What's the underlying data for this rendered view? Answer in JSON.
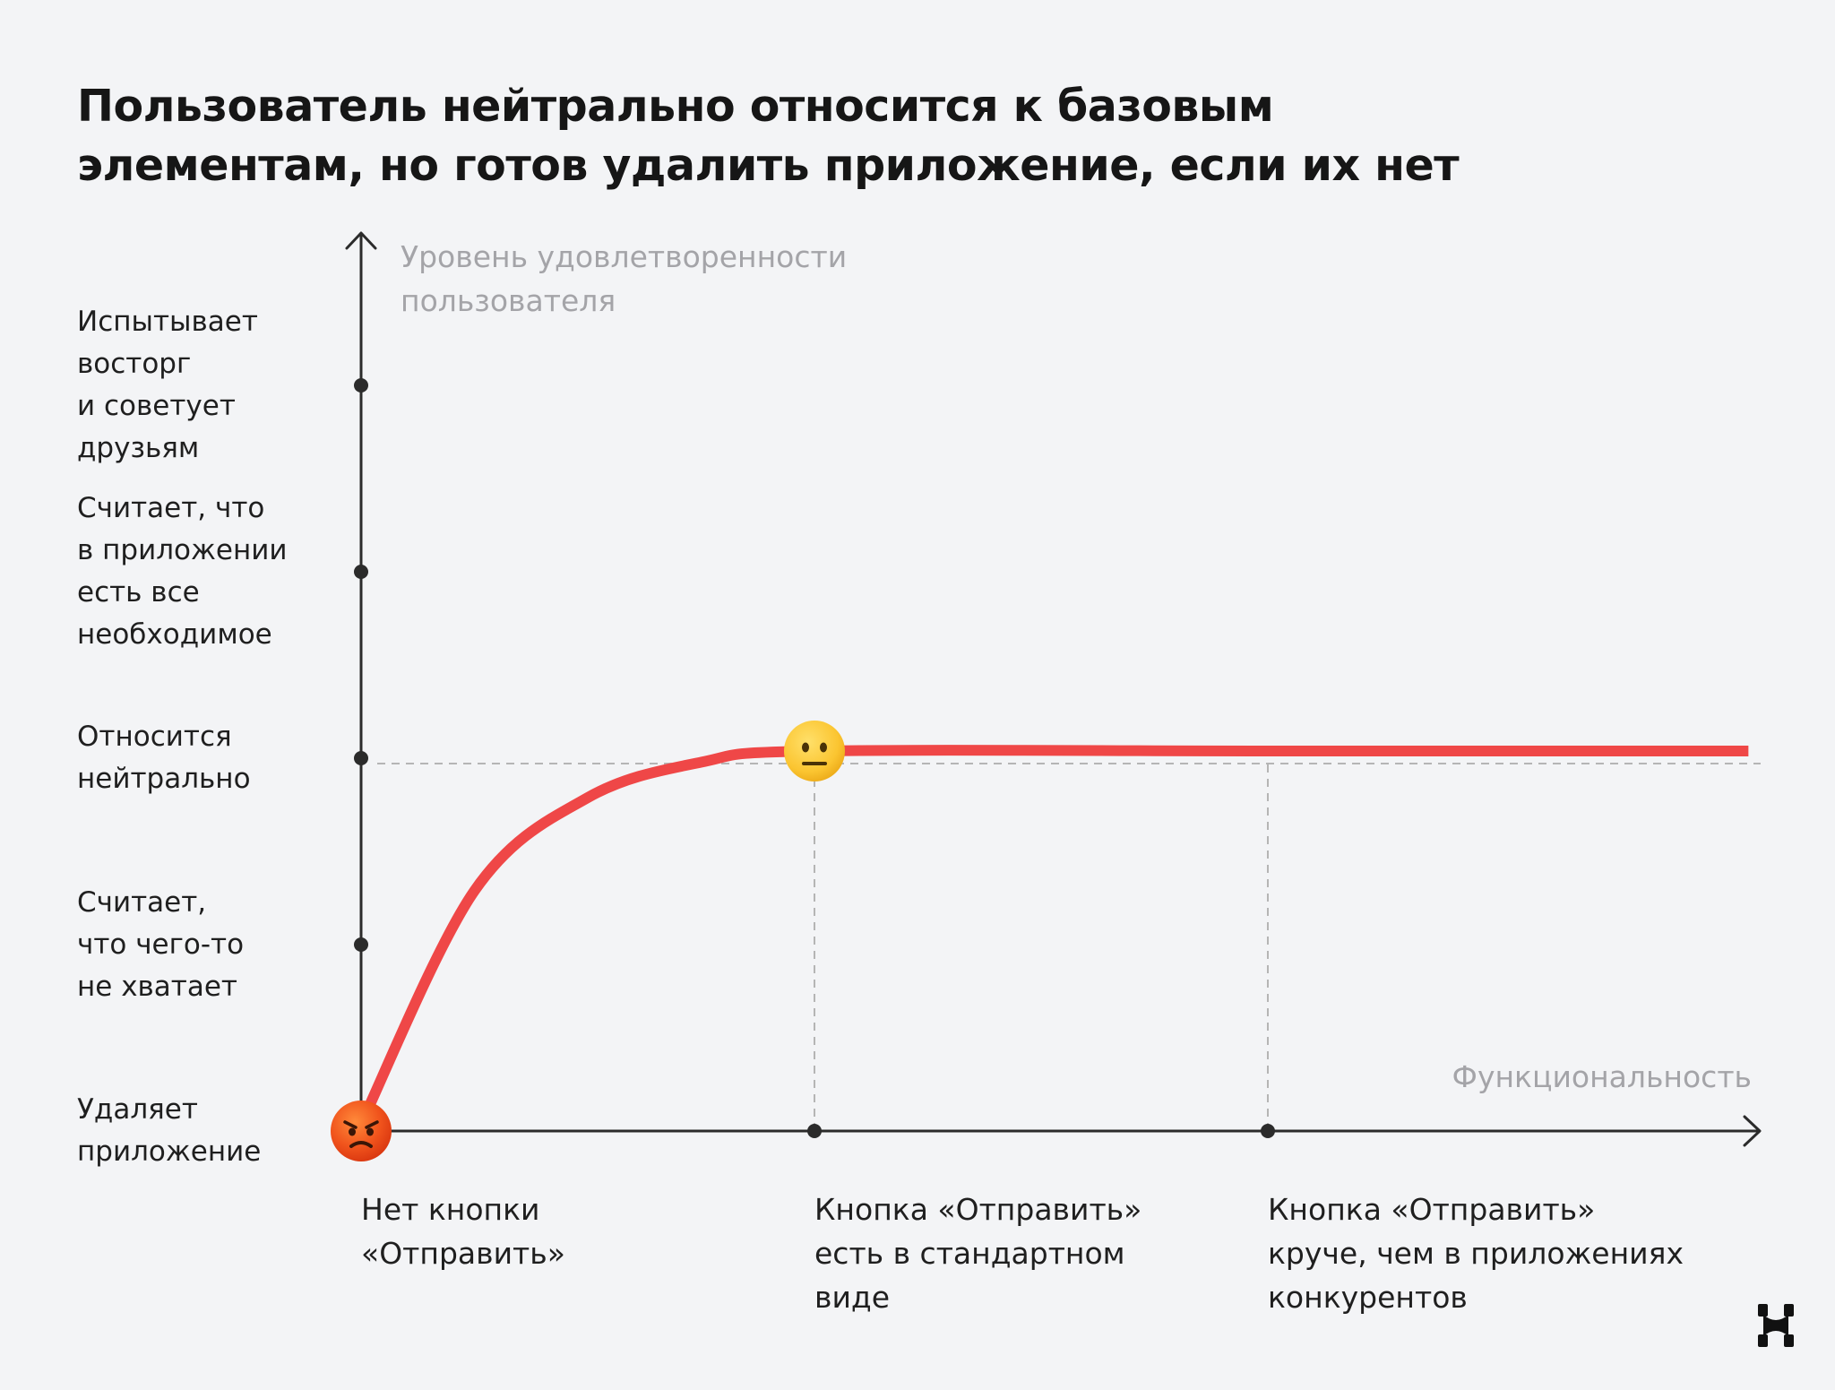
{
  "title": {
    "line1": "Пользователь нейтрально относится к базовым",
    "line2": "элементам, но готов удалить приложение, если их нет"
  },
  "chart_data": {
    "type": "line",
    "ylabel": [
      "Уровень удовлетворенности",
      "пользователя"
    ],
    "xlabel": "Функциональность",
    "y_levels": [
      {
        "lines": [
          "Удаляет",
          "приложение"
        ]
      },
      {
        "lines": [
          "Считает,",
          "что чего-то",
          "не хватает"
        ]
      },
      {
        "lines": [
          "Относится",
          "нейтрально"
        ]
      },
      {
        "lines": [
          "Считает, что",
          "в приложении",
          "есть все",
          "необходимое"
        ]
      },
      {
        "lines": [
          "Испытывает",
          "восторг",
          "и советует",
          "друзьям"
        ]
      }
    ],
    "x_points": [
      {
        "lines": [
          "Нет кнопки",
          "«Отправить»"
        ]
      },
      {
        "lines": [
          "Кнопка «Отправить»",
          "есть в стандартном",
          "виде"
        ]
      },
      {
        "lines": [
          "Кнопка «Отправить»",
          "круче, чем в приложениях",
          "конкурентов"
        ]
      }
    ],
    "series": [
      {
        "x": [
          0,
          0.25,
          0.5,
          0.75,
          1,
          2,
          3.06
        ],
        "y": [
          0,
          1.25,
          1.75,
          1.94,
          2,
          2,
          2
        ]
      }
    ],
    "reference_level": 2,
    "markers": [
      {
        "x": 0,
        "y": 0,
        "icon": "angry-face-icon"
      },
      {
        "x": 1,
        "y": 2,
        "icon": "neutral-face-icon"
      }
    ],
    "colors": {
      "curve": "#ef4747",
      "axis": "#2b2b2b",
      "guide": "#b5b5b5",
      "axis_title": "#a4a4a8"
    }
  },
  "logo": {
    "icon": "brand-logo-icon"
  }
}
